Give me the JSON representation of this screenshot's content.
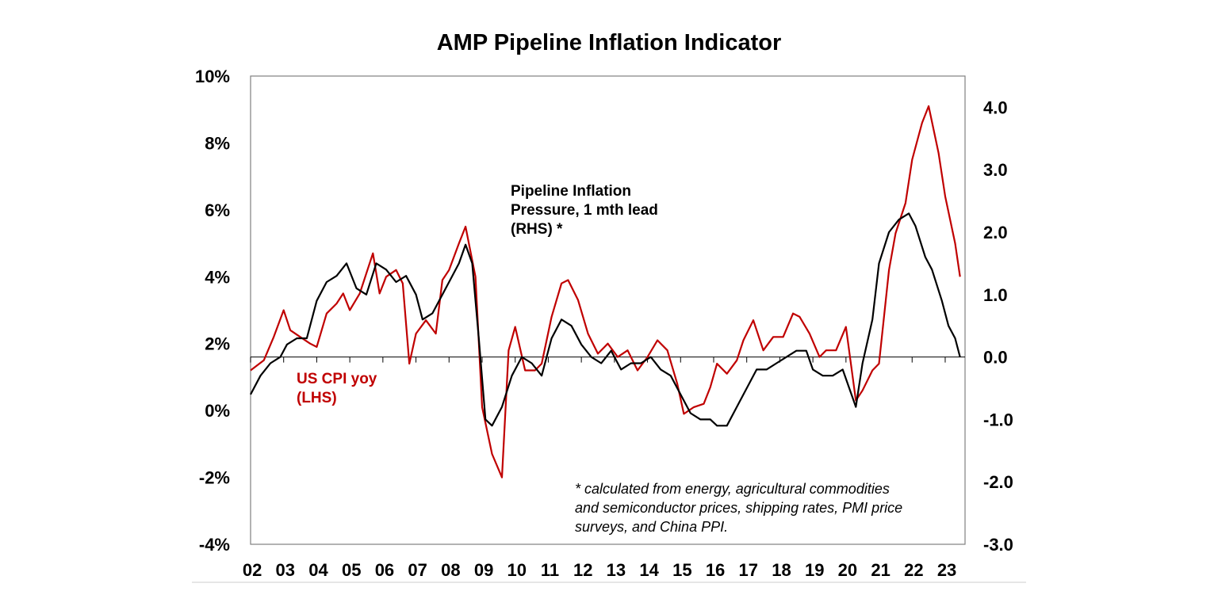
{
  "chart_data": {
    "type": "line",
    "title": "AMP Pipeline Inflation Indicator",
    "x_tick_labels": [
      "02",
      "03",
      "04",
      "05",
      "06",
      "07",
      "08",
      "09",
      "10",
      "11",
      "12",
      "13",
      "14",
      "15",
      "16",
      "17",
      "18",
      "19",
      "20",
      "21",
      "22",
      "23"
    ],
    "x_range": [
      2002.0,
      2023.6
    ],
    "left_axis": {
      "ylim": [
        -4,
        10
      ],
      "ticks": [
        10,
        8,
        6,
        4,
        2,
        0,
        -2,
        -4
      ],
      "tick_labels": [
        "10%",
        "8%",
        "6%",
        "4%",
        "2%",
        "0%",
        "-2%",
        "-4%"
      ]
    },
    "right_axis": {
      "ylim": [
        -3.0,
        4.5
      ],
      "ticks": [
        4.0,
        3.0,
        2.0,
        1.0,
        0.0,
        -1.0,
        -2.0,
        -3.0
      ],
      "tick_labels": [
        "4.0",
        "3.0",
        "2.0",
        "1.0",
        "0.0",
        "-1.0",
        "-2.0",
        "-3.0"
      ]
    },
    "zero_line_rhs": 0.0,
    "series": [
      {
        "name": "US CPI yoy (LHS)",
        "label_lines": [
          "US CPI yoy",
          "(LHS)"
        ],
        "axis": "left",
        "color": "#c00000",
        "x": [
          2002.0,
          2002.4,
          2002.7,
          2003.0,
          2003.2,
          2003.5,
          2003.8,
          2004.0,
          2004.3,
          2004.6,
          2004.8,
          2005.0,
          2005.3,
          2005.7,
          2005.9,
          2006.1,
          2006.4,
          2006.6,
          2006.8,
          2007.0,
          2007.3,
          2007.6,
          2007.8,
          2008.0,
          2008.3,
          2008.5,
          2008.8,
          2009.0,
          2009.3,
          2009.6,
          2009.8,
          2010.0,
          2010.3,
          2010.6,
          2010.8,
          2011.1,
          2011.4,
          2011.6,
          2011.9,
          2012.2,
          2012.5,
          2012.8,
          2013.1,
          2013.4,
          2013.7,
          2014.0,
          2014.3,
          2014.6,
          2014.9,
          2015.1,
          2015.4,
          2015.7,
          2015.9,
          2016.1,
          2016.4,
          2016.7,
          2016.9,
          2017.2,
          2017.5,
          2017.8,
          2018.1,
          2018.4,
          2018.6,
          2018.9,
          2019.2,
          2019.4,
          2019.7,
          2020.0,
          2020.3,
          2020.5,
          2020.8,
          2021.0,
          2021.3,
          2021.5,
          2021.8,
          2022.0,
          2022.3,
          2022.5,
          2022.8,
          2023.0,
          2023.3,
          2023.45
        ],
        "values": [
          1.2,
          1.5,
          2.2,
          3.0,
          2.4,
          2.2,
          2.0,
          1.9,
          2.9,
          3.2,
          3.5,
          3.0,
          3.5,
          4.7,
          3.5,
          4.0,
          4.2,
          3.8,
          1.4,
          2.3,
          2.7,
          2.3,
          3.9,
          4.2,
          5.0,
          5.5,
          4.0,
          0.1,
          -1.3,
          -2.0,
          1.8,
          2.5,
          1.2,
          1.2,
          1.4,
          2.8,
          3.8,
          3.9,
          3.3,
          2.3,
          1.7,
          2.0,
          1.6,
          1.8,
          1.2,
          1.6,
          2.1,
          1.8,
          0.8,
          -0.1,
          0.1,
          0.2,
          0.7,
          1.4,
          1.1,
          1.5,
          2.1,
          2.7,
          1.8,
          2.2,
          2.2,
          2.9,
          2.8,
          2.3,
          1.6,
          1.8,
          1.8,
          2.5,
          0.3,
          0.6,
          1.2,
          1.4,
          4.2,
          5.3,
          6.2,
          7.5,
          8.6,
          9.1,
          7.7,
          6.4,
          5.0,
          4.0
        ]
      },
      {
        "name": "Pipeline Inflation Pressure, 1 mth lead (RHS) *",
        "label_lines": [
          "Pipeline Inflation",
          "Pressure, 1 mth lead",
          "(RHS) *"
        ],
        "axis": "right",
        "color": "#000000",
        "x": [
          2002.0,
          2002.3,
          2002.6,
          2002.9,
          2003.1,
          2003.4,
          2003.7,
          2004.0,
          2004.3,
          2004.6,
          2004.9,
          2005.2,
          2005.5,
          2005.8,
          2006.1,
          2006.4,
          2006.7,
          2007.0,
          2007.2,
          2007.5,
          2007.8,
          2008.0,
          2008.3,
          2008.5,
          2008.7,
          2008.9,
          2009.1,
          2009.3,
          2009.6,
          2009.9,
          2010.2,
          2010.5,
          2010.8,
          2011.1,
          2011.4,
          2011.7,
          2012.0,
          2012.3,
          2012.6,
          2012.9,
          2013.2,
          2013.5,
          2013.8,
          2014.1,
          2014.4,
          2014.7,
          2015.0,
          2015.3,
          2015.6,
          2015.9,
          2016.1,
          2016.4,
          2016.7,
          2017.0,
          2017.3,
          2017.6,
          2017.9,
          2018.2,
          2018.5,
          2018.8,
          2019.0,
          2019.3,
          2019.6,
          2019.9,
          2020.1,
          2020.3,
          2020.5,
          2020.8,
          2021.0,
          2021.3,
          2021.6,
          2021.9,
          2022.1,
          2022.4,
          2022.6,
          2022.9,
          2023.1,
          2023.3,
          2023.45
        ],
        "values": [
          -0.6,
          -0.3,
          -0.1,
          0.0,
          0.2,
          0.3,
          0.3,
          0.9,
          1.2,
          1.3,
          1.5,
          1.1,
          1.0,
          1.5,
          1.4,
          1.2,
          1.3,
          1.0,
          0.6,
          0.7,
          1.0,
          1.2,
          1.5,
          1.8,
          1.5,
          0.3,
          -1.0,
          -1.1,
          -0.8,
          -0.3,
          0.0,
          -0.1,
          -0.3,
          0.3,
          0.6,
          0.5,
          0.2,
          0.0,
          -0.1,
          0.1,
          -0.2,
          -0.1,
          -0.1,
          0.0,
          -0.2,
          -0.3,
          -0.6,
          -0.9,
          -1.0,
          -1.0,
          -1.1,
          -1.1,
          -0.8,
          -0.5,
          -0.2,
          -0.2,
          -0.1,
          0.0,
          0.1,
          0.1,
          -0.2,
          -0.3,
          -0.3,
          -0.2,
          -0.5,
          -0.8,
          -0.1,
          0.6,
          1.5,
          2.0,
          2.2,
          2.3,
          2.1,
          1.6,
          1.4,
          0.9,
          0.5,
          0.3,
          0.0
        ]
      }
    ],
    "footnote_lines": [
      "* calculated from energy, agricultural commodities",
      "and semiconductor prices, shipping rates, PMI price",
      "surveys, and China PPI."
    ]
  }
}
